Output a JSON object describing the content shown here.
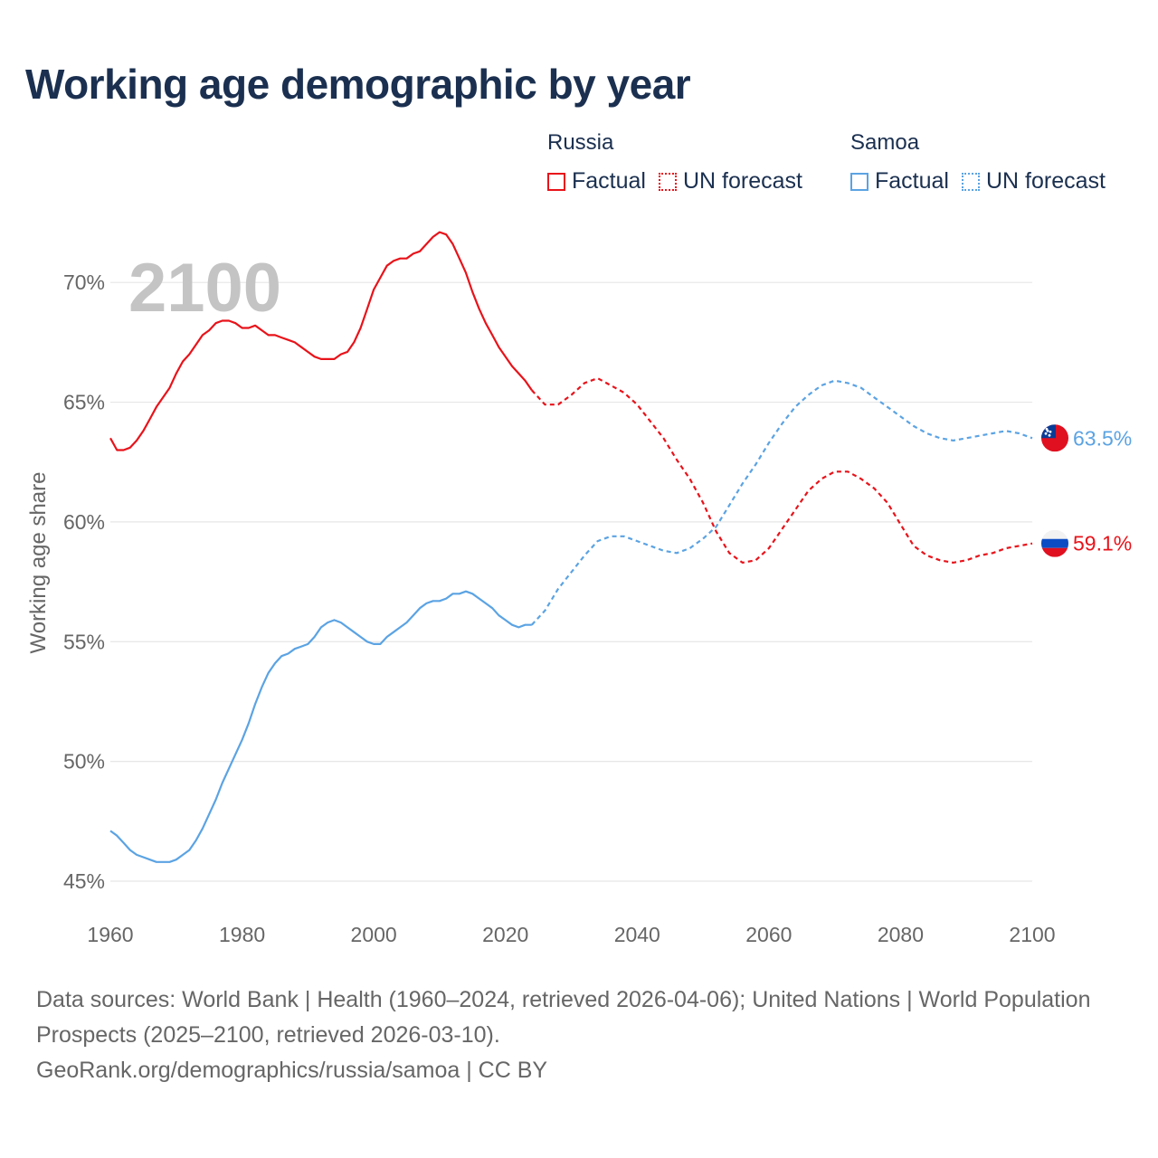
{
  "title": "Working age demographic by year",
  "colors": {
    "russia": "#e8131a",
    "samoa": "#5ba3e3",
    "grid": "#e6e6e6",
    "axis_text": "#666666",
    "year_watermark": "#c4c4c4",
    "title": "#1b3050"
  },
  "legend": {
    "groups": [
      {
        "name": "Russia",
        "factual_label": "Factual",
        "forecast_label": "UN forecast"
      },
      {
        "name": "Samoa",
        "factual_label": "Factual",
        "forecast_label": "UN forecast"
      }
    ]
  },
  "footer": {
    "sources": "Data sources: World Bank | Health (1960–2024, retrieved 2026-04-06); United Nations | World Population Prospects (2025–2100, retrieved 2026-03-10).",
    "credit": "GeoRank.org/demographics/russia/samoa | CC BY"
  },
  "chart_data": {
    "type": "line",
    "title": "Working age demographic by year",
    "year_label": "2100",
    "xlabel": "",
    "ylabel": "Working age share",
    "xlim": [
      1960,
      2100
    ],
    "ylim": [
      45,
      72.5
    ],
    "x_ticks": [
      1960,
      1980,
      2000,
      2020,
      2040,
      2060,
      2080,
      2100
    ],
    "x_tick_labels": [
      "1960",
      "1980",
      "2000",
      "2020",
      "2040",
      "2060",
      "2080",
      "2100"
    ],
    "y_ticks": [
      45,
      50,
      55,
      60,
      65,
      70
    ],
    "y_tick_labels": [
      "45%",
      "50%",
      "55%",
      "60%",
      "65%",
      "70%"
    ],
    "forecast_start": 2024,
    "series": [
      {
        "name": "Russia",
        "end_label": "59.1%",
        "x": [
          1960,
          1961,
          1962,
          1963,
          1964,
          1965,
          1966,
          1967,
          1968,
          1969,
          1970,
          1971,
          1972,
          1973,
          1974,
          1975,
          1976,
          1977,
          1978,
          1979,
          1980,
          1981,
          1982,
          1983,
          1984,
          1985,
          1986,
          1987,
          1988,
          1989,
          1990,
          1991,
          1992,
          1993,
          1994,
          1995,
          1996,
          1997,
          1998,
          1999,
          2000,
          2001,
          2002,
          2003,
          2004,
          2005,
          2006,
          2007,
          2008,
          2009,
          2010,
          2011,
          2012,
          2013,
          2014,
          2015,
          2016,
          2017,
          2018,
          2019,
          2020,
          2021,
          2022,
          2023,
          2024,
          2026,
          2028,
          2030,
          2032,
          2034,
          2036,
          2038,
          2040,
          2042,
          2044,
          2046,
          2048,
          2050,
          2052,
          2054,
          2056,
          2058,
          2060,
          2062,
          2064,
          2066,
          2068,
          2070,
          2072,
          2074,
          2076,
          2078,
          2080,
          2082,
          2084,
          2086,
          2088,
          2090,
          2092,
          2094,
          2096,
          2098,
          2100
        ],
        "values": [
          63.5,
          63.0,
          63.0,
          63.1,
          63.4,
          63.8,
          64.3,
          64.8,
          65.2,
          65.6,
          66.2,
          66.7,
          67.0,
          67.4,
          67.8,
          68.0,
          68.3,
          68.4,
          68.4,
          68.3,
          68.1,
          68.1,
          68.2,
          68.0,
          67.8,
          67.8,
          67.7,
          67.6,
          67.5,
          67.3,
          67.1,
          66.9,
          66.8,
          66.8,
          66.8,
          67.0,
          67.1,
          67.5,
          68.1,
          68.9,
          69.7,
          70.2,
          70.7,
          70.9,
          71.0,
          71.0,
          71.2,
          71.3,
          71.6,
          71.9,
          72.1,
          72.0,
          71.6,
          71.0,
          70.4,
          69.6,
          68.9,
          68.3,
          67.8,
          67.3,
          66.9,
          66.5,
          66.2,
          65.9,
          65.5,
          64.9,
          64.9,
          65.3,
          65.8,
          66.0,
          65.7,
          65.4,
          64.9,
          64.2,
          63.5,
          62.6,
          61.8,
          60.8,
          59.6,
          58.7,
          58.3,
          58.4,
          58.9,
          59.7,
          60.5,
          61.3,
          61.8,
          62.1,
          62.1,
          61.8,
          61.4,
          60.8,
          59.9,
          59.0,
          58.6,
          58.4,
          58.3,
          58.4,
          58.6,
          58.7,
          58.9,
          59.0,
          59.1
        ]
      },
      {
        "name": "Samoa",
        "end_label": "63.5%",
        "x": [
          1960,
          1961,
          1962,
          1963,
          1964,
          1965,
          1966,
          1967,
          1968,
          1969,
          1970,
          1971,
          1972,
          1973,
          1974,
          1975,
          1976,
          1977,
          1978,
          1979,
          1980,
          1981,
          1982,
          1983,
          1984,
          1985,
          1986,
          1987,
          1988,
          1989,
          1990,
          1991,
          1992,
          1993,
          1994,
          1995,
          1996,
          1997,
          1998,
          1999,
          2000,
          2001,
          2002,
          2003,
          2004,
          2005,
          2006,
          2007,
          2008,
          2009,
          2010,
          2011,
          2012,
          2013,
          2014,
          2015,
          2016,
          2017,
          2018,
          2019,
          2020,
          2021,
          2022,
          2023,
          2024,
          2026,
          2028,
          2030,
          2032,
          2034,
          2036,
          2038,
          2040,
          2042,
          2044,
          2046,
          2048,
          2050,
          2052,
          2054,
          2056,
          2058,
          2060,
          2062,
          2064,
          2066,
          2068,
          2070,
          2072,
          2074,
          2076,
          2078,
          2080,
          2082,
          2084,
          2086,
          2088,
          2090,
          2092,
          2094,
          2096,
          2098,
          2100
        ],
        "values": [
          47.1,
          46.9,
          46.6,
          46.3,
          46.1,
          46.0,
          45.9,
          45.8,
          45.8,
          45.8,
          45.9,
          46.1,
          46.3,
          46.7,
          47.2,
          47.8,
          48.4,
          49.1,
          49.7,
          50.3,
          50.9,
          51.6,
          52.4,
          53.1,
          53.7,
          54.1,
          54.4,
          54.5,
          54.7,
          54.8,
          54.9,
          55.2,
          55.6,
          55.8,
          55.9,
          55.8,
          55.6,
          55.4,
          55.2,
          55.0,
          54.9,
          54.9,
          55.2,
          55.4,
          55.6,
          55.8,
          56.1,
          56.4,
          56.6,
          56.7,
          56.7,
          56.8,
          57.0,
          57.0,
          57.1,
          57.0,
          56.8,
          56.6,
          56.4,
          56.1,
          55.9,
          55.7,
          55.6,
          55.7,
          55.7,
          56.3,
          57.2,
          57.9,
          58.6,
          59.2,
          59.4,
          59.4,
          59.2,
          59.0,
          58.8,
          58.7,
          58.9,
          59.3,
          59.8,
          60.7,
          61.6,
          62.4,
          63.3,
          64.1,
          64.8,
          65.3,
          65.7,
          65.9,
          65.8,
          65.6,
          65.2,
          64.8,
          64.4,
          64.0,
          63.7,
          63.5,
          63.4,
          63.5,
          63.6,
          63.7,
          63.8,
          63.7,
          63.5
        ]
      }
    ]
  }
}
